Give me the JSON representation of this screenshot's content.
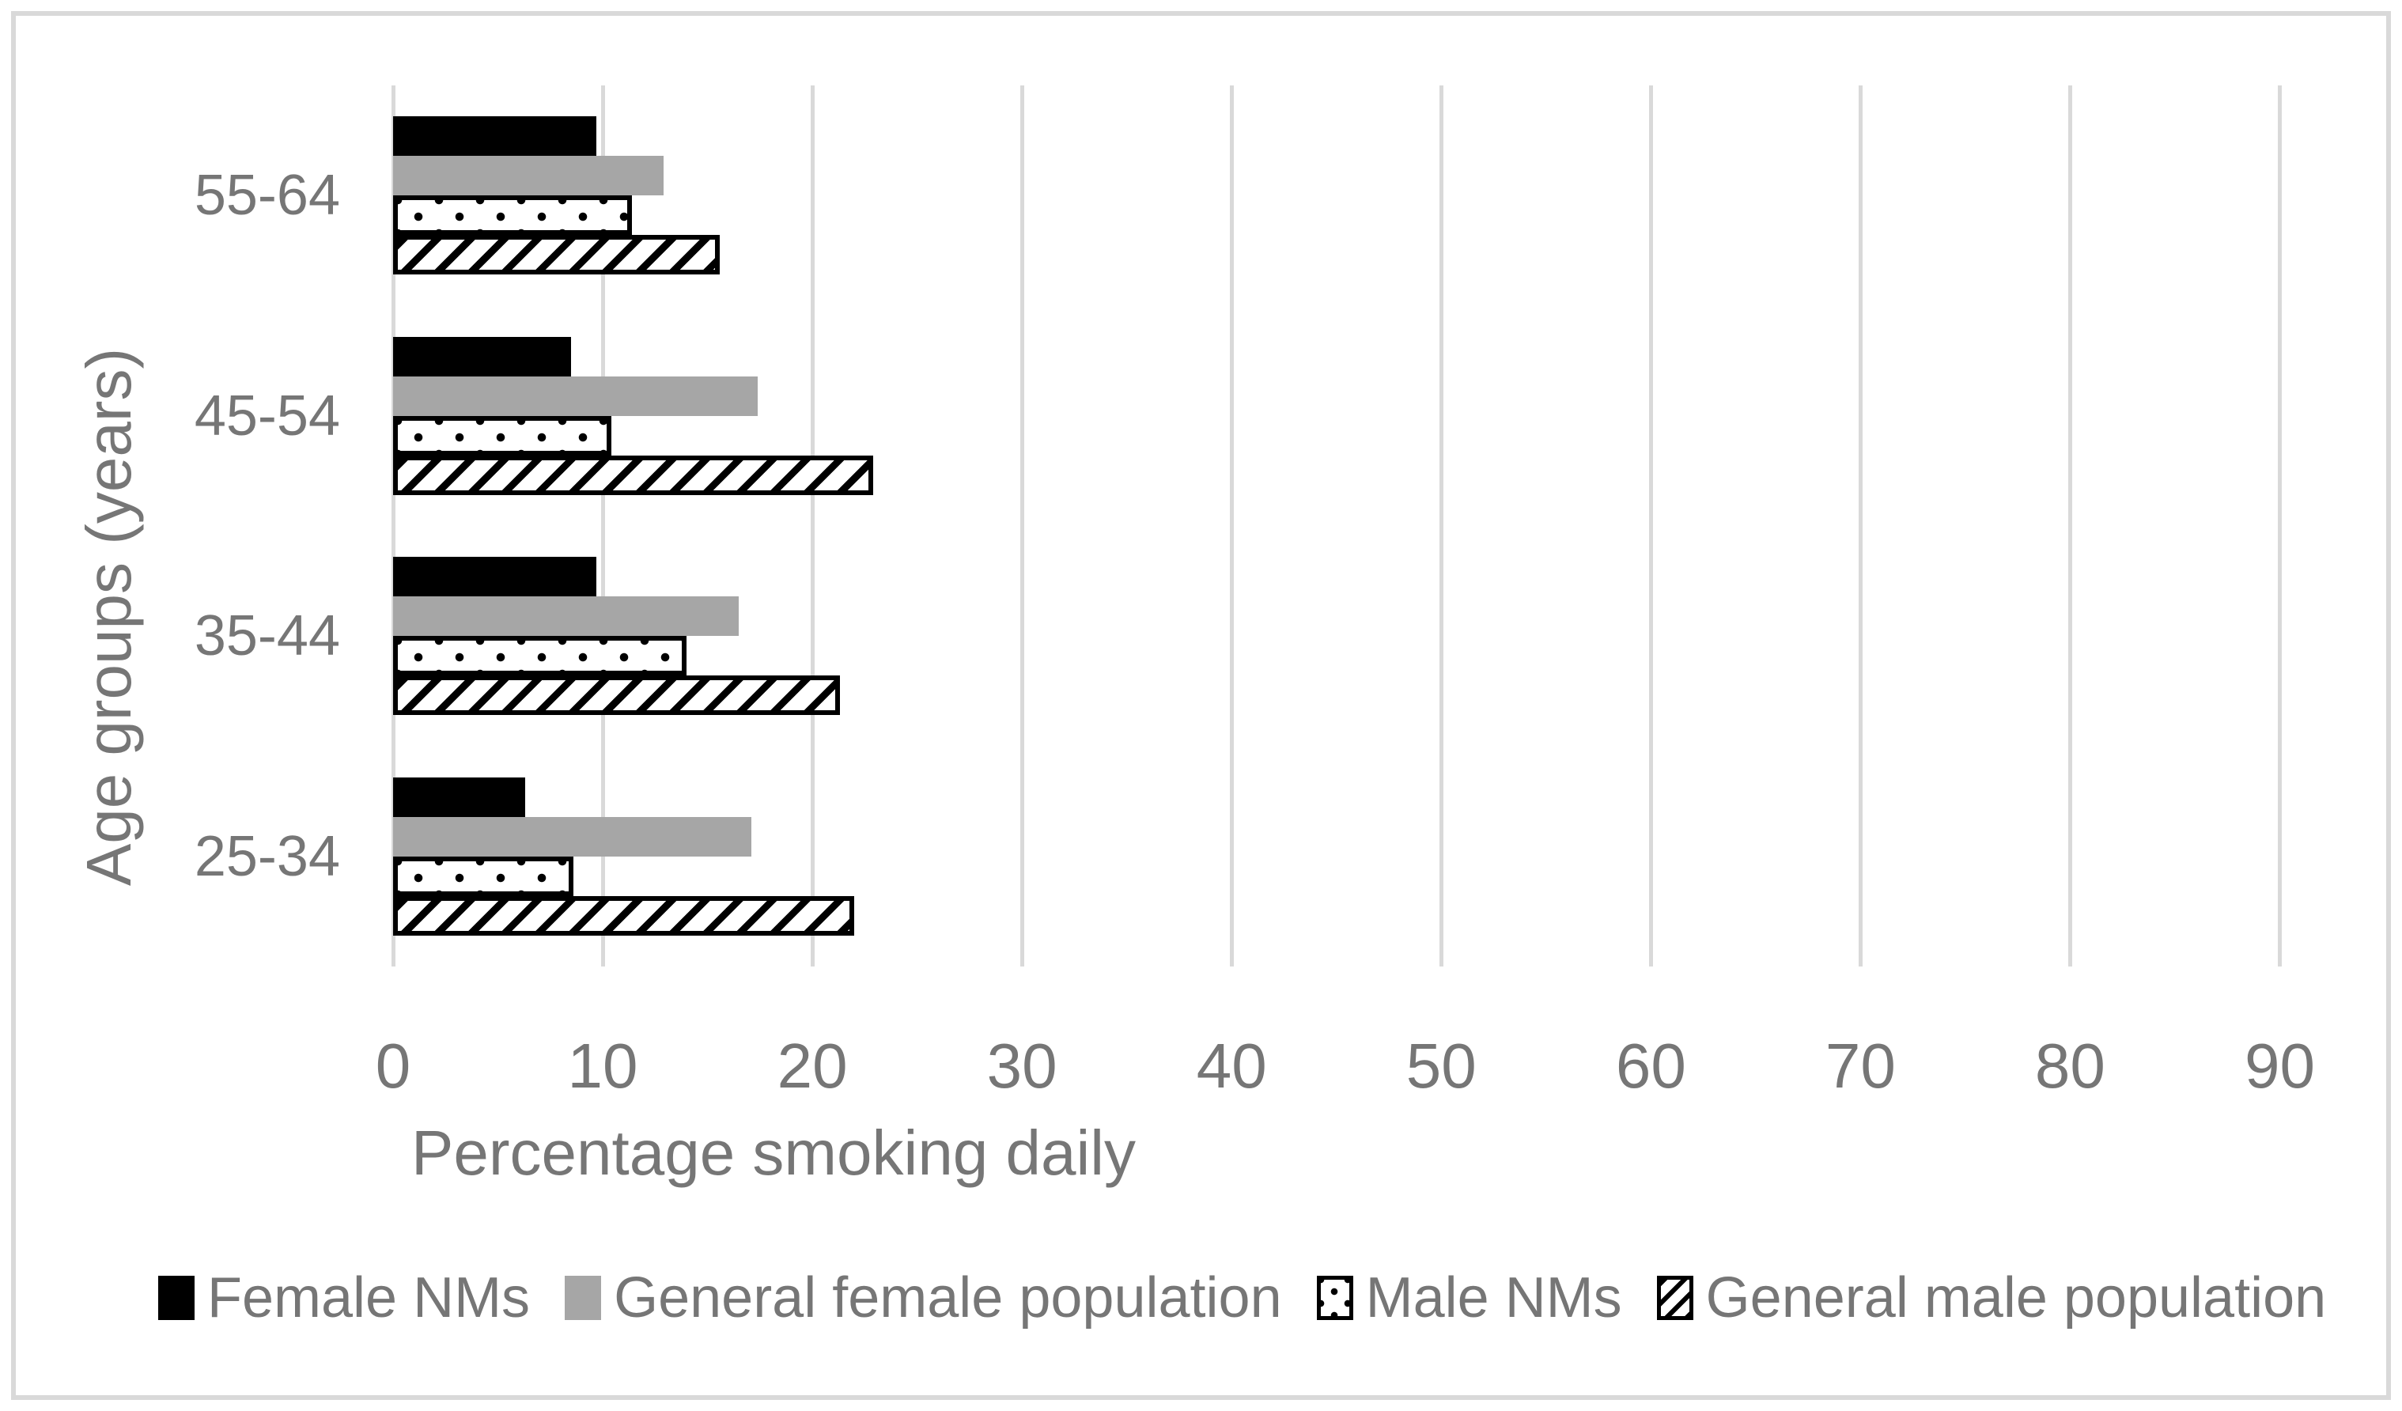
{
  "chart_data": {
    "type": "bar",
    "orientation": "horizontal",
    "xlabel": "Percentage smoking daily",
    "ylabel": "Age groups (years)",
    "categories_top_to_bottom": [
      "55-64",
      "45-54",
      "35-44",
      "25-34"
    ],
    "x_ticks": [
      0,
      10,
      20,
      30,
      40,
      50,
      60,
      70,
      80,
      90
    ],
    "xlim": [
      0,
      93
    ],
    "grid": "vertical-gridlines-on",
    "legend_position": "bottom",
    "series": [
      {
        "name": "Female NMs",
        "style": "black",
        "values": [
          9.7,
          8.5,
          9.7,
          6.3
        ]
      },
      {
        "name": "General female population",
        "style": "gray",
        "values": [
          12.9,
          17.4,
          16.5,
          17.1
        ]
      },
      {
        "name": "Male NMs",
        "style": "dots",
        "values": [
          11.4,
          10.4,
          14.0,
          8.6
        ]
      },
      {
        "name": "General male population",
        "style": "hatch",
        "values": [
          15.6,
          22.9,
          21.3,
          22.0
        ]
      }
    ]
  },
  "colors": {
    "bar_black": "#000000",
    "bar_gray": "#a6a6a6",
    "pattern_foreground": "#000000",
    "pattern_background": "#ffffff",
    "gridline": "#d9d9d9",
    "frame_border": "#d9d9d9",
    "text": "#767676"
  }
}
